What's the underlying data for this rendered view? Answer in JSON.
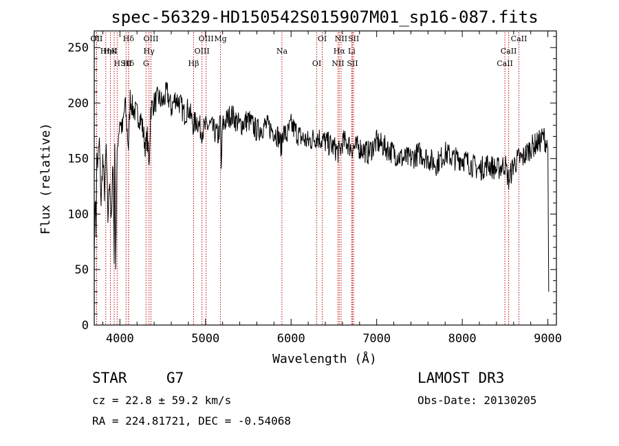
{
  "chart_data": {
    "type": "line",
    "title": "spec-56329-HD150542S015907M01_sp16-087.fits",
    "xlabel": "Wavelength (Å)",
    "ylabel": "Flux (relative)",
    "xlim": [
      3700,
      9100
    ],
    "ylim": [
      0,
      265
    ],
    "xticks": [
      4000,
      5000,
      6000,
      7000,
      8000,
      9000
    ],
    "yticks": [
      0,
      50,
      100,
      150,
      200,
      250
    ],
    "grid": false,
    "series": [
      {
        "name": "flux",
        "x": [
          3700,
          3710,
          3720,
          3730,
          3740,
          3760,
          3780,
          3800,
          3820,
          3840,
          3860,
          3880,
          3900,
          3920,
          3933,
          3940,
          3950,
          3968,
          3980,
          4000,
          4030,
          4060,
          4101,
          4120,
          4150,
          4200,
          4250,
          4300,
          4320,
          4340,
          4360,
          4400,
          4450,
          4500,
          4550,
          4600,
          4650,
          4700,
          4750,
          4800,
          4861,
          4900,
          4950,
          5000,
          5050,
          5100,
          5150,
          5175,
          5183,
          5200,
          5250,
          5300,
          5400,
          5500,
          5600,
          5700,
          5800,
          5850,
          5890,
          5900,
          5950,
          6000,
          6100,
          6200,
          6300,
          6400,
          6500,
          6563,
          6600,
          6650,
          6700,
          6800,
          6900,
          7000,
          7100,
          7200,
          7300,
          7400,
          7500,
          7600,
          7700,
          7800,
          7900,
          8000,
          8100,
          8200,
          8300,
          8400,
          8500,
          8542,
          8600,
          8662,
          8700,
          8800,
          8900,
          8950,
          9000,
          9010
        ],
        "values": [
          60,
          120,
          85,
          150,
          145,
          165,
          110,
          150,
          120,
          160,
          95,
          135,
          90,
          150,
          55,
          170,
          60,
          150,
          170,
          185,
          175,
          200,
          160,
          205,
          195,
          190,
          185,
          160,
          170,
          140,
          195,
          200,
          205,
          200,
          210,
          195,
          205,
          200,
          190,
          195,
          180,
          185,
          175,
          178,
          180,
          175,
          170,
          185,
          140,
          180,
          185,
          190,
          180,
          185,
          175,
          180,
          175,
          170,
          160,
          175,
          170,
          180,
          170,
          165,
          170,
          165,
          160,
          155,
          165,
          165,
          160,
          160,
          155,
          165,
          160,
          155,
          150,
          150,
          155,
          150,
          145,
          155,
          150,
          150,
          145,
          140,
          145,
          140,
          145,
          130,
          145,
          150,
          150,
          160,
          165,
          170,
          160,
          30
        ]
      }
    ],
    "emission_lines": [
      {
        "label": "Hδ",
        "x": 4101
      },
      {
        "label": "K",
        "x": 3933
      },
      {
        "label": "Hδ",
        "x": 4101
      },
      {
        "label": "OII",
        "x": 3727
      },
      {
        "label": "HeI",
        "x": 3889
      },
      {
        "label": "SII",
        "x": 4072
      },
      {
        "label": "OII",
        "x": 3727
      },
      {
        "label": "Hη",
        "x": 3835
      },
      {
        "label": "H",
        "x": 3968
      },
      {
        "label": "OIII",
        "x": 4363
      },
      {
        "label": "Hγ",
        "x": 4340
      },
      {
        "label": "G",
        "x": 4305
      },
      {
        "label": "OIII",
        "x": 5007
      },
      {
        "label": "OIII",
        "x": 4959
      },
      {
        "label": "Hβ",
        "x": 4861
      },
      {
        "label": "Mg",
        "x": 5175
      },
      {
        "label": "Na",
        "x": 5893
      },
      {
        "label": "OI",
        "x": 6300
      },
      {
        "label": "OI",
        "x": 6364
      },
      {
        "label": "Hα",
        "x": 6563
      },
      {
        "label": "SII",
        "x": 6717
      },
      {
        "label": "NII",
        "x": 6584
      },
      {
        "label": "Li",
        "x": 6708
      },
      {
        "label": "NII",
        "x": 6548
      },
      {
        "label": "SII",
        "x": 6731
      },
      {
        "label": "CaII",
        "x": 8542
      },
      {
        "label": "CaII",
        "x": 8498
      },
      {
        "label": "CaII",
        "x": 8662
      }
    ]
  },
  "info": {
    "object_class": "STAR",
    "subclass": "G7",
    "survey": "LAMOST DR3",
    "cz": "cz = 22.8 ± 59.2 km/s",
    "obs_date": "Obs-Date: 20130205",
    "coords": "RA = 224.81721, DEC =  -0.54068"
  },
  "colors": {
    "line_marker": "#c00000",
    "spectrum": "#000000"
  }
}
